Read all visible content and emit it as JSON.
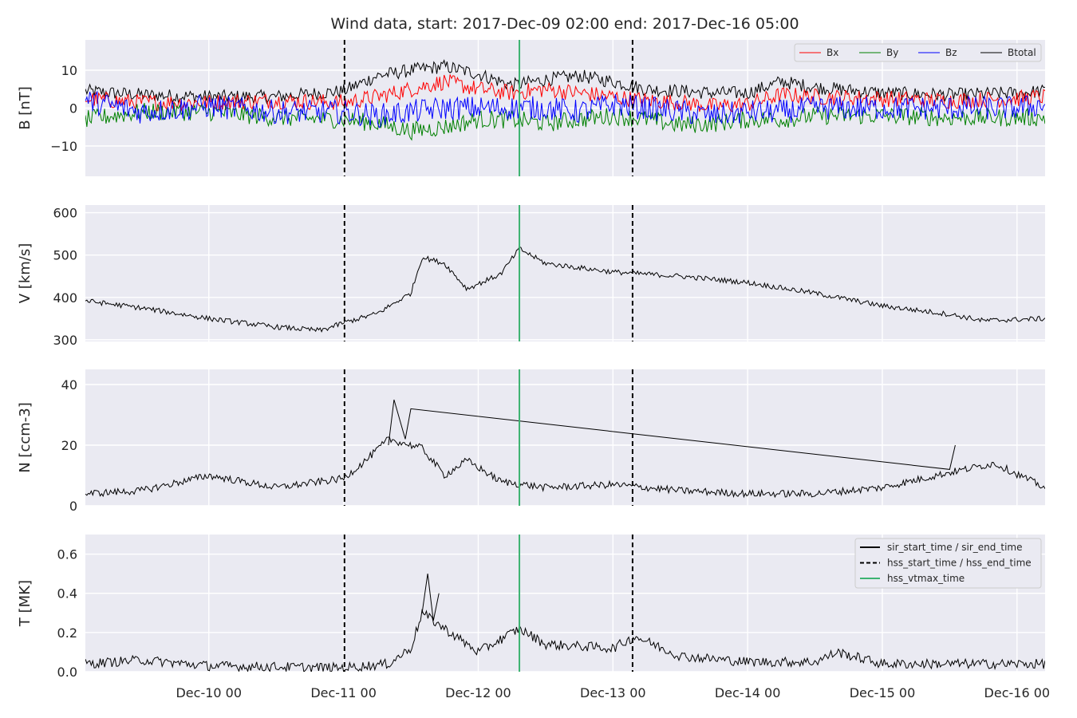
{
  "chart_data": {
    "title": "Wind data, start: 2017-Dec-09 02:00  end: 2017-Dec-16 05:00",
    "type": "line",
    "x_range": [
      "2017-12-09 02:00",
      "2017-12-16 05:00"
    ],
    "x_ticks": [
      {
        "t": "2017-12-10 00:00",
        "label": "Dec-10 00"
      },
      {
        "t": "2017-12-11 00:00",
        "label": "Dec-11 00"
      },
      {
        "t": "2017-12-12 00:00",
        "label": "Dec-12 00"
      },
      {
        "t": "2017-12-13 00:00",
        "label": "Dec-13 00"
      },
      {
        "t": "2017-12-14 00:00",
        "label": "Dec-14 00"
      },
      {
        "t": "2017-12-15 00:00",
        "label": "Dec-15 00"
      },
      {
        "t": "2017-12-16 00:00",
        "label": "Dec-16 00"
      }
    ],
    "events": {
      "hss_start_time": "2017-12-11 00:10",
      "hss_end_time": "2017-12-13 03:30",
      "hss_vtmax_time": "2017-12-12 07:20"
    },
    "colors": {
      "Bx": "#ff0000",
      "By": "#008000",
      "Bz": "#0000ff",
      "Btotal": "#000000",
      "vtmax": "#3cb371",
      "bg": "#eaeaf2",
      "grid": "#ffffff"
    },
    "panels": [
      {
        "id": "B",
        "ylabel": "B [nT]",
        "ylim": [
          -18,
          18
        ],
        "yticks": [
          -10,
          0,
          10
        ],
        "ytick_labels": [
          "−10",
          "0",
          "10"
        ],
        "legend": {
          "placement": "top-right",
          "entries": [
            "Bx",
            "By",
            "Bz",
            "Btotal"
          ]
        },
        "series": [
          {
            "name": "Btotal",
            "times": [
              "2017-12-09 02:00",
              "2017-12-09 12:00",
              "2017-12-10 00:00",
              "2017-12-10 12:00",
              "2017-12-11 00:00",
              "2017-12-11 06:00",
              "2017-12-11 12:00",
              "2017-12-11 18:00",
              "2017-12-12 00:00",
              "2017-12-12 06:00",
              "2017-12-12 12:00",
              "2017-12-12 18:00",
              "2017-12-13 00:00",
              "2017-12-13 06:00",
              "2017-12-13 12:00",
              "2017-12-13 18:00",
              "2017-12-14 00:00",
              "2017-12-14 06:00",
              "2017-12-14 12:00",
              "2017-12-15 00:00",
              "2017-12-15 12:00",
              "2017-12-16 00:00",
              "2017-12-16 05:00"
            ],
            "values": [
              4.5,
              3.5,
              3,
              3,
              4.5,
              8.5,
              10,
              11,
              9,
              6,
              7.5,
              8.5,
              7,
              5,
              4.5,
              4,
              4,
              7,
              5.5,
              4,
              3.5,
              4,
              4.5
            ],
            "noise": 1.8
          },
          {
            "name": "Bx",
            "times": [
              "2017-12-09 02:00",
              "2017-12-09 12:00",
              "2017-12-10 00:00",
              "2017-12-10 12:00",
              "2017-12-11 00:00",
              "2017-12-11 06:00",
              "2017-12-11 12:00",
              "2017-12-11 18:00",
              "2017-12-12 00:00",
              "2017-12-12 06:00",
              "2017-12-12 12:00",
              "2017-12-12 18:00",
              "2017-12-13 00:00",
              "2017-12-13 06:00",
              "2017-12-13 12:00",
              "2017-12-13 18:00",
              "2017-12-14 00:00",
              "2017-12-14 06:00",
              "2017-12-14 12:00",
              "2017-12-15 00:00",
              "2017-12-15 12:00",
              "2017-12-16 00:00",
              "2017-12-16 05:00"
            ],
            "values": [
              2.5,
              1.5,
              1.5,
              2,
              1.5,
              3,
              5,
              7,
              5,
              4,
              5,
              4,
              3,
              2,
              1.5,
              0.5,
              1,
              3.5,
              3,
              2.5,
              2,
              2.5,
              3
            ],
            "noise": 2.2
          },
          {
            "name": "By",
            "times": [
              "2017-12-09 02:00",
              "2017-12-09 12:00",
              "2017-12-10 00:00",
              "2017-12-10 12:00",
              "2017-12-11 00:00",
              "2017-12-11 06:00",
              "2017-12-11 12:00",
              "2017-12-11 18:00",
              "2017-12-12 00:00",
              "2017-12-12 06:00",
              "2017-12-12 12:00",
              "2017-12-12 18:00",
              "2017-12-13 00:00",
              "2017-12-13 06:00",
              "2017-12-13 12:00",
              "2017-12-13 18:00",
              "2017-12-14 00:00",
              "2017-12-14 06:00",
              "2017-12-14 12:00",
              "2017-12-15 00:00",
              "2017-12-15 12:00",
              "2017-12-16 00:00",
              "2017-12-16 05:00"
            ],
            "values": [
              -3,
              -1,
              -1,
              -2.5,
              -3,
              -4,
              -6,
              -5,
              -3,
              -3,
              -4,
              -3,
              -2,
              -3,
              -4.5,
              -4,
              -3,
              -3,
              -2,
              -2,
              -2.5,
              -2.5,
              -2.5
            ],
            "noise": 2.4
          },
          {
            "name": "Bz",
            "times": [
              "2017-12-09 02:00",
              "2017-12-09 12:00",
              "2017-12-10 00:00",
              "2017-12-10 12:00",
              "2017-12-11 00:00",
              "2017-12-11 06:00",
              "2017-12-11 12:00",
              "2017-12-11 18:00",
              "2017-12-12 00:00",
              "2017-12-12 06:00",
              "2017-12-12 12:00",
              "2017-12-12 18:00",
              "2017-12-13 00:00",
              "2017-12-13 06:00",
              "2017-12-13 12:00",
              "2017-12-13 18:00",
              "2017-12-14 00:00",
              "2017-12-14 06:00",
              "2017-12-14 12:00",
              "2017-12-15 00:00",
              "2017-12-15 12:00",
              "2017-12-16 00:00",
              "2017-12-16 05:00"
            ],
            "values": [
              2,
              -1,
              0.5,
              -1,
              -1,
              -2,
              -1,
              0,
              0,
              0,
              0,
              -1,
              1,
              0,
              -1,
              -2,
              -1,
              -1,
              0,
              0,
              0,
              0,
              1
            ],
            "noise": 3.2
          }
        ]
      },
      {
        "id": "V",
        "ylabel": "V [km/s]",
        "ylim": [
          296,
          618
        ],
        "yticks": [
          300,
          400,
          500,
          600
        ],
        "ytick_labels": [
          "300",
          "400",
          "500",
          "600"
        ],
        "series": [
          {
            "name": "V",
            "times": [
              "2017-12-09 02:00",
              "2017-12-09 12:00",
              "2017-12-10 00:00",
              "2017-12-10 12:00",
              "2017-12-10 20:00",
              "2017-12-11 00:00",
              "2017-12-11 06:00",
              "2017-12-11 12:00",
              "2017-12-11 14:00",
              "2017-12-11 18:00",
              "2017-12-11 22:00",
              "2017-12-12 04:00",
              "2017-12-12 07:20",
              "2017-12-12 12:00",
              "2017-12-13 00:00",
              "2017-12-13 12:00",
              "2017-12-14 00:00",
              "2017-12-14 12:00",
              "2017-12-15 00:00",
              "2017-12-15 12:00",
              "2017-12-15 18:00",
              "2017-12-16 05:00"
            ],
            "values": [
              392,
              375,
              350,
              330,
              322,
              340,
              362,
              410,
              495,
              480,
              420,
              455,
              515,
              480,
              460,
              450,
              435,
              410,
              380,
              360,
              345,
              350
            ],
            "noise": 6
          }
        ]
      },
      {
        "id": "N",
        "ylabel": "N [ccm-3]",
        "ylim": [
          0,
          45
        ],
        "yticks": [
          0,
          20,
          40
        ],
        "ytick_labels": [
          "0",
          "20",
          "40"
        ],
        "series": [
          {
            "name": "N",
            "times": [
              "2017-12-09 02:00",
              "2017-12-09 12:00",
              "2017-12-10 00:00",
              "2017-12-10 12:00",
              "2017-12-11 00:00",
              "2017-12-11 04:00",
              "2017-12-11 08:00",
              "2017-12-11 14:00",
              "2017-12-11 18:00",
              "2017-12-11 22:00",
              "2017-12-12 04:00",
              "2017-12-12 12:00",
              "2017-12-13 00:00",
              "2017-12-13 12:00",
              "2017-12-14 00:00",
              "2017-12-14 12:00",
              "2017-12-15 00:00",
              "2017-12-15 12:00",
              "2017-12-15 20:00",
              "2017-12-16 05:00"
            ],
            "values": [
              4,
              5,
              10,
              6,
              9,
              15,
              22,
              19,
              10,
              15,
              8,
              6,
              7,
              5,
              4,
              4,
              6,
              11,
              14,
              6
            ],
            "noise": 1.2
          },
          {
            "name": "N",
            "times": [
              "2017-12-11 08:00",
              "2017-12-11 09:00",
              "2017-12-11 11:00",
              "2017-12-11 12:00",
              "2017-12-15 12:00",
              "2017-12-15 13:00"
            ],
            "values": [
              20,
              35,
              22,
              32,
              12,
              20
            ],
            "noise": 0
          }
        ]
      },
      {
        "id": "T",
        "ylabel": "T [MK]",
        "ylim": [
          0,
          0.7
        ],
        "yticks": [
          0.0,
          0.2,
          0.4,
          0.6
        ],
        "ytick_labels": [
          "0.0",
          "0.2",
          "0.4",
          "0.6"
        ],
        "legend": {
          "placement": "top-right",
          "entries": [
            "sir_start_time / sir_end_time",
            "hss_start_time / hss_end_time",
            "hss_vtmax_time"
          ]
        },
        "series": [
          {
            "name": "T",
            "times": [
              "2017-12-09 02:00",
              "2017-12-09 12:00",
              "2017-12-10 00:00",
              "2017-12-11 00:00",
              "2017-12-11 08:00",
              "2017-12-11 12:00",
              "2017-12-11 14:00",
              "2017-12-11 18:00",
              "2017-12-12 00:00",
              "2017-12-12 07:20",
              "2017-12-12 12:00",
              "2017-12-13 00:00",
              "2017-12-13 04:00",
              "2017-12-13 12:00",
              "2017-12-14 00:00",
              "2017-12-14 12:00",
              "2017-12-14 16:00",
              "2017-12-15 00:00",
              "2017-12-15 12:00",
              "2017-12-16 05:00"
            ],
            "values": [
              0.04,
              0.06,
              0.03,
              0.02,
              0.04,
              0.12,
              0.3,
              0.22,
              0.1,
              0.22,
              0.14,
              0.12,
              0.18,
              0.08,
              0.05,
              0.05,
              0.1,
              0.04,
              0.04,
              0.04
            ],
            "noise": 0.025
          },
          {
            "name": "T",
            "times": [
              "2017-12-11 14:00",
              "2017-12-11 15:00",
              "2017-12-11 16:00",
              "2017-12-11 17:00"
            ],
            "values": [
              0.3,
              0.5,
              0.26,
              0.4
            ],
            "noise": 0
          }
        ]
      }
    ],
    "legend_B": [
      "Bx",
      "By",
      "Bz",
      "Btotal"
    ],
    "legend_T": [
      "sir_start_time / sir_end_time",
      "hss_start_time / hss_end_time",
      "hss_vtmax_time"
    ]
  }
}
